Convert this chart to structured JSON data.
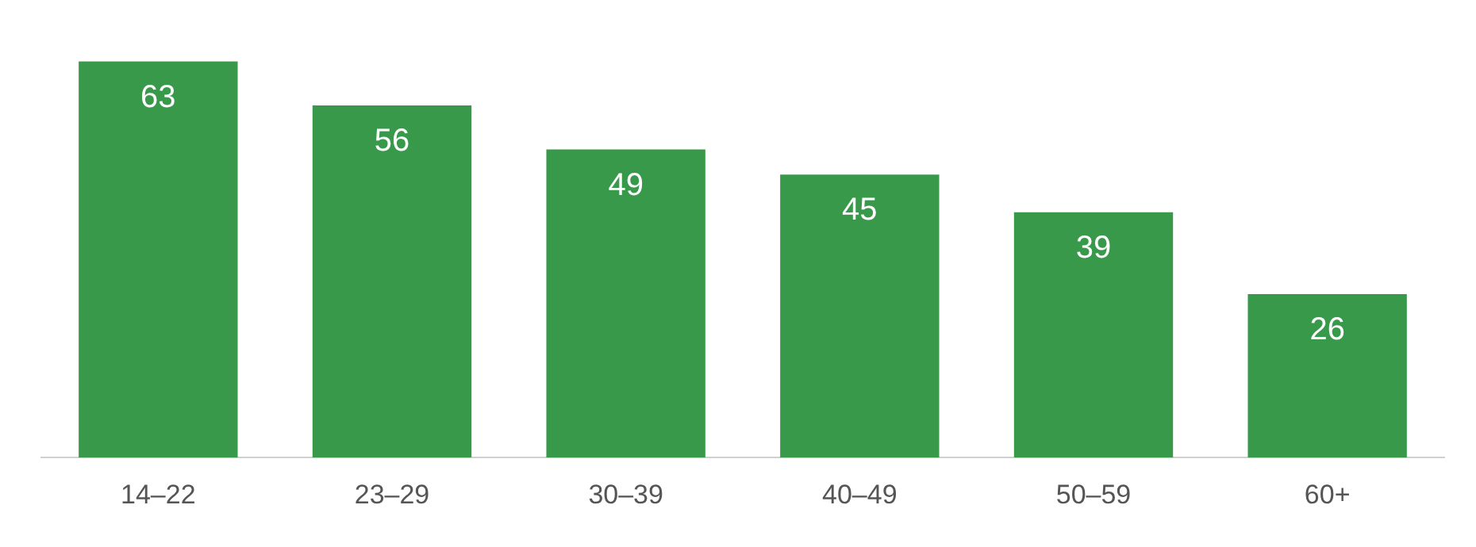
{
  "chart_data": {
    "type": "bar",
    "categories": [
      "14–22",
      "23–29",
      "30–39",
      "40–49",
      "50–59",
      "60+"
    ],
    "values": [
      63,
      56,
      49,
      45,
      39,
      26
    ],
    "color": "#38994a",
    "data_labels": true,
    "grid": false,
    "legend": false,
    "tick_labels": "x"
  }
}
